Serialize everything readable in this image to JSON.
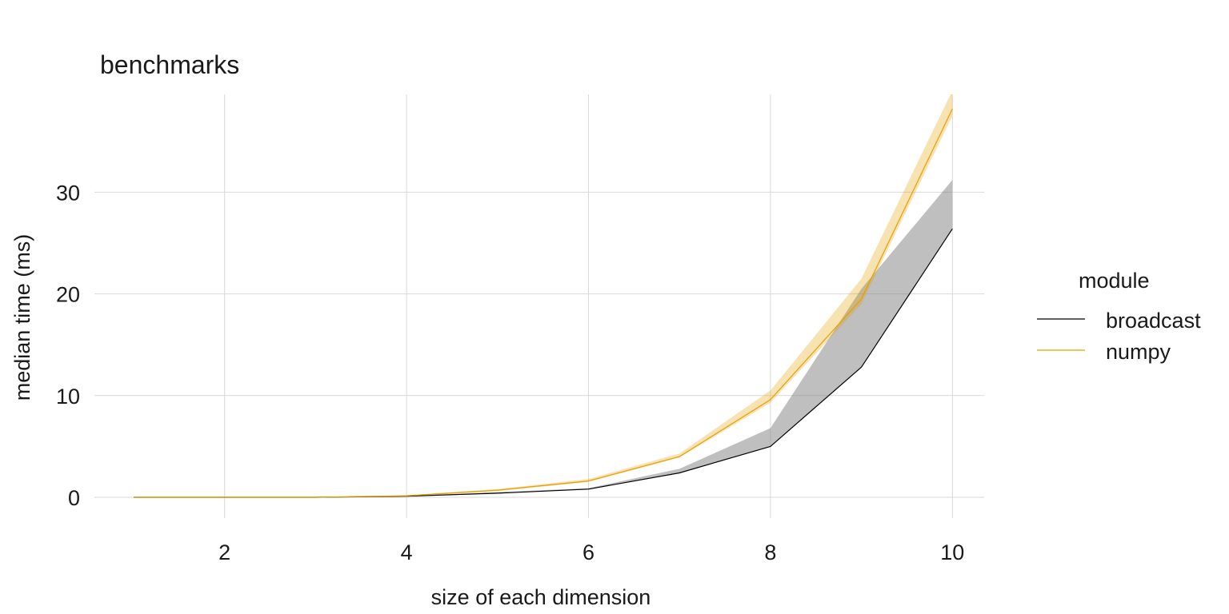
{
  "chart_data": {
    "type": "line",
    "title": "benchmarks",
    "xlabel": "size of each dimension",
    "ylabel": "median time (ms)",
    "xlim": [
      0.5,
      10.5
    ],
    "ylim": [
      -2,
      40
    ],
    "x_ticks": [
      2,
      4,
      6,
      8,
      10
    ],
    "y_ticks": [
      0,
      10,
      20,
      30
    ],
    "grid": true,
    "legend": {
      "title": "module",
      "position": "right"
    },
    "series": [
      {
        "name": "broadcast",
        "color": "#000000",
        "band_color": "#808080",
        "x": [
          1,
          2,
          3,
          4,
          5,
          6,
          7,
          8,
          9,
          10
        ],
        "y": [
          0.0,
          0.0,
          0.0,
          0.1,
          0.4,
          0.8,
          2.4,
          5.0,
          12.8,
          26.4
        ],
        "y_low": [
          0.0,
          0.0,
          0.0,
          0.1,
          0.4,
          0.8,
          2.4,
          5.0,
          12.8,
          26.4
        ],
        "y_high": [
          0.0,
          0.0,
          0.0,
          0.15,
          0.5,
          0.9,
          2.8,
          6.8,
          20.5,
          31.2
        ]
      },
      {
        "name": "numpy",
        "color": "#E69F00",
        "band_color": "#E69F00",
        "x": [
          1,
          2,
          3,
          4,
          5,
          6,
          7,
          8,
          9,
          10
        ],
        "y": [
          0.0,
          0.0,
          0.0,
          0.15,
          0.7,
          1.6,
          4.0,
          9.6,
          19.5,
          38.2
        ],
        "y_low": [
          0.0,
          0.0,
          0.0,
          0.1,
          0.6,
          1.5,
          3.9,
          9.3,
          19.0,
          37.5
        ],
        "y_high": [
          0.05,
          0.05,
          0.05,
          0.2,
          0.8,
          1.8,
          4.3,
          10.5,
          21.5,
          40.0
        ]
      }
    ]
  }
}
